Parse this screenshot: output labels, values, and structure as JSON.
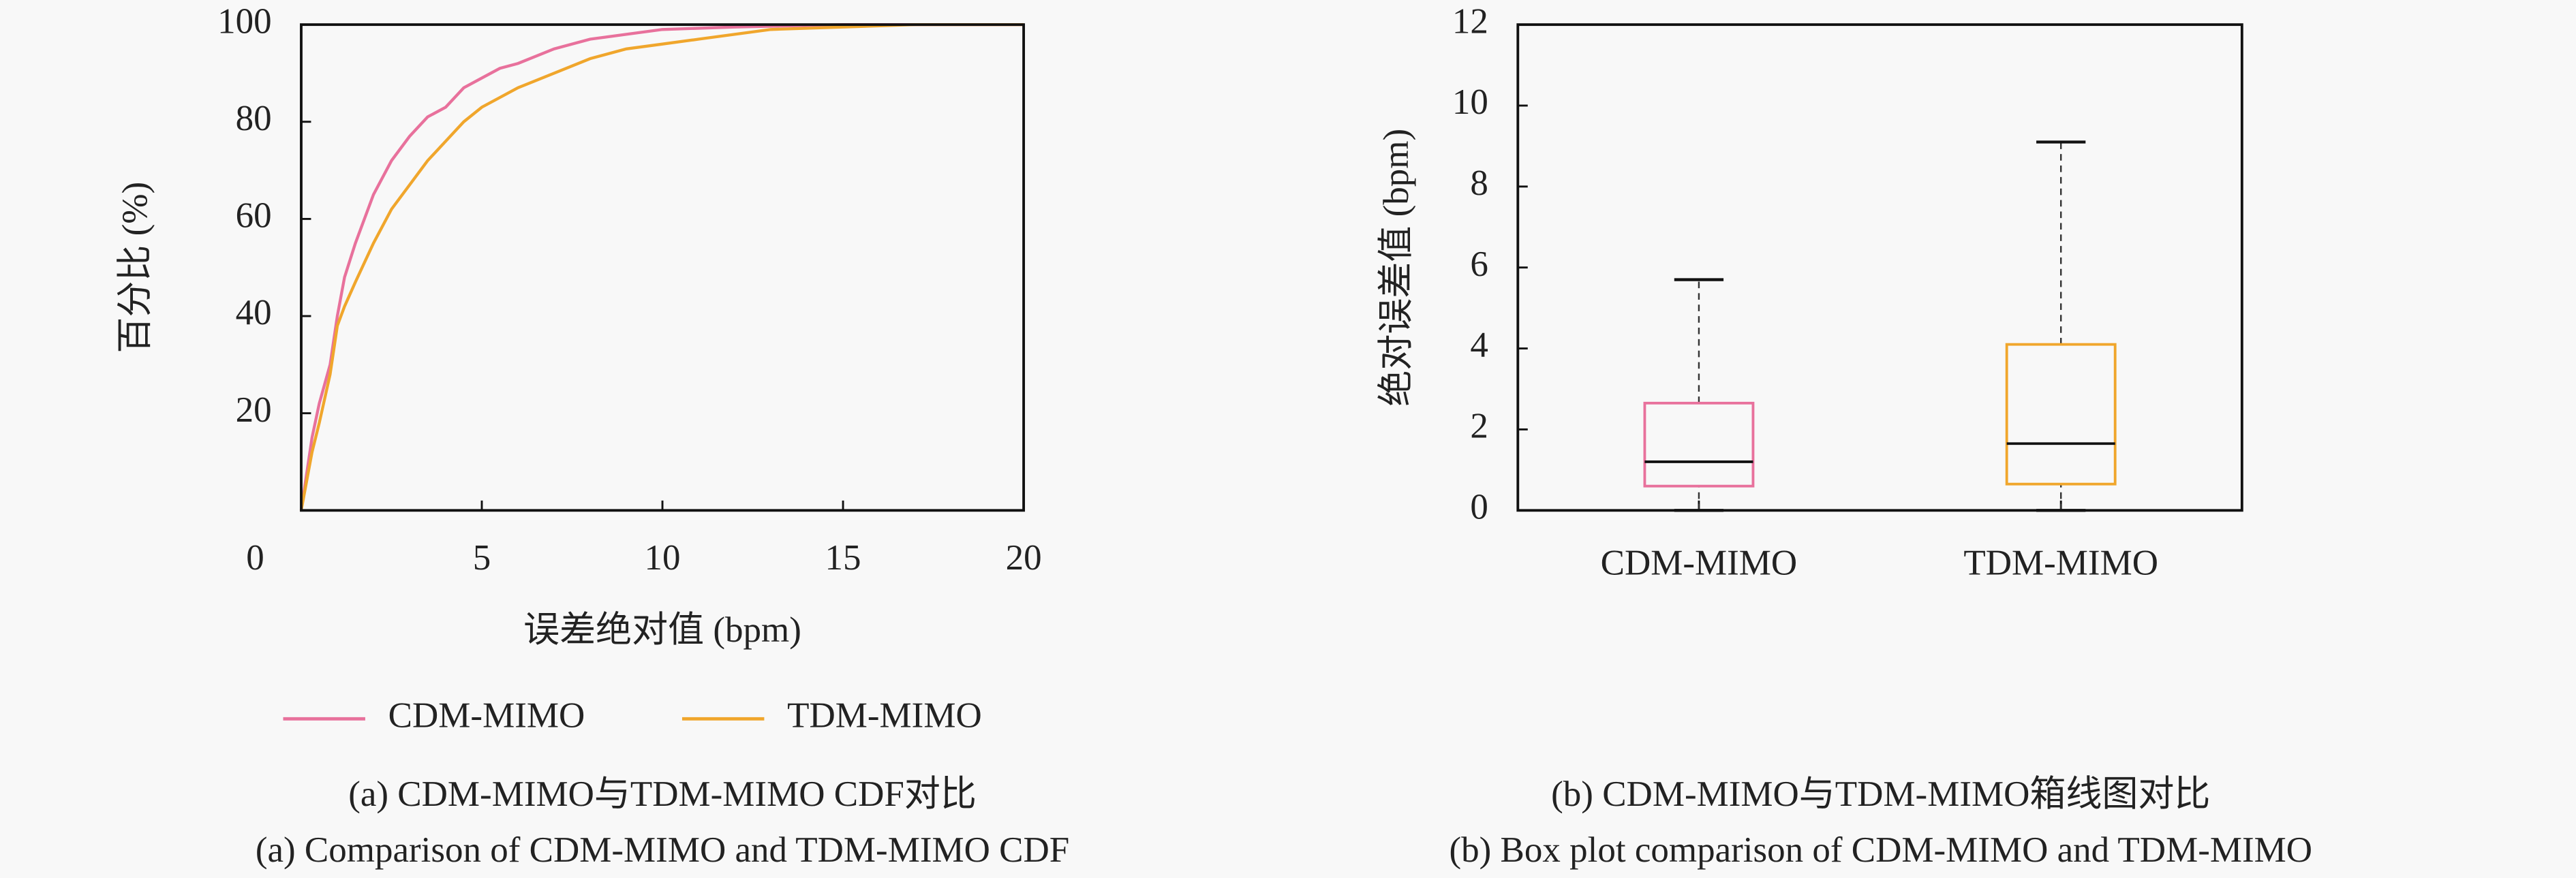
{
  "chart_data": [
    {
      "type": "line",
      "xlabel": "误差绝对值 (bpm)",
      "ylabel": "百分比 (%)",
      "caption_zh": "(a) CDM-MIMO与TDM-MIMO CDF对比",
      "caption_en": "(a) Comparison of CDM-MIMO and TDM-MIMO CDF",
      "xlim": [
        0,
        20
      ],
      "xticks": [
        0,
        5,
        10,
        15,
        20
      ],
      "ylim": [
        0,
        100
      ],
      "yticks": [
        20,
        40,
        60,
        80,
        100
      ],
      "legend": "bottom",
      "series": [
        {
          "name": "CDM-MIMO",
          "color": "#e8719c",
          "x": [
            0,
            0.3,
            0.5,
            0.8,
            1,
            1.2,
            1.5,
            2,
            2.5,
            3,
            3.5,
            4,
            4.5,
            5,
            5.5,
            6,
            7,
            8,
            9,
            10,
            12,
            15,
            20
          ],
          "values": [
            0,
            15,
            22,
            30,
            40,
            48,
            55,
            65,
            72,
            77,
            81,
            83,
            87,
            89,
            91,
            92,
            95,
            97,
            98,
            99,
            99.5,
            100,
            100
          ]
        },
        {
          "name": "TDM-MIMO",
          "color": "#f0a62c",
          "x": [
            0,
            0.3,
            0.5,
            0.8,
            1,
            1.2,
            1.5,
            2,
            2.5,
            3,
            3.5,
            4,
            4.5,
            5,
            5.5,
            6,
            7,
            8,
            9,
            10,
            11,
            12,
            13,
            15,
            17,
            20
          ],
          "values": [
            0,
            12,
            18,
            28,
            38,
            42,
            47,
            55,
            62,
            67,
            72,
            76,
            80,
            83,
            85,
            87,
            90,
            93,
            95,
            96,
            97,
            98,
            99,
            99.5,
            100,
            100
          ]
        }
      ]
    },
    {
      "type": "box",
      "ylabel": "绝对误差值 (bpm)",
      "caption_zh": "(b) CDM-MIMO与TDM-MIMO箱线图对比",
      "caption_en": "(b) Box plot comparison of CDM-MIMO and TDM-MIMO",
      "ylim": [
        0,
        12
      ],
      "yticks": [
        0,
        2,
        4,
        6,
        8,
        10,
        12
      ],
      "categories": [
        "CDM-MIMO",
        "TDM-MIMO"
      ],
      "series": [
        {
          "color": "#e8719c",
          "whislo": 0,
          "q1": 0.6,
          "median": 1.2,
          "q3": 2.65,
          "whishi": 5.7
        },
        {
          "color": "#f0a62c",
          "whislo": 0,
          "q1": 0.65,
          "median": 1.65,
          "q3": 4.1,
          "whishi": 9.1
        }
      ]
    }
  ]
}
